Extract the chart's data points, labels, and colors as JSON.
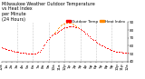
{
  "title": "Milwaukee Weather Outdoor Temperature vs Heat Index per Minute (24 Hours)",
  "bg_color": "#ffffff",
  "dot_color_temp": "#ff0000",
  "dot_color_hi": "#ff8800",
  "legend_label_temp": "Outdoor Temp",
  "legend_label_hi": "Heat Index",
  "legend_color_temp": "#ff0000",
  "legend_color_hi": "#ff8800",
  "ylim": [
    40,
    90
  ],
  "yticks": [
    40,
    50,
    60,
    70,
    80,
    90
  ],
  "xlim": [
    0,
    1440
  ],
  "xtick_positions": [
    0,
    60,
    120,
    180,
    240,
    300,
    360,
    420,
    480,
    540,
    600,
    660,
    720,
    780,
    840,
    900,
    960,
    1020,
    1080,
    1140,
    1200,
    1260,
    1320,
    1380,
    1440
  ],
  "xtick_labels": [
    "12a",
    "1a",
    "2a",
    "3a",
    "4a",
    "5a",
    "6a",
    "7a",
    "8a",
    "9a",
    "10a",
    "11a",
    "12p",
    "1p",
    "2p",
    "3p",
    "4p",
    "5p",
    "6p",
    "7p",
    "8p",
    "9p",
    "10p",
    "11p",
    "12a"
  ],
  "vgrid_positions": [
    180,
    360,
    540,
    720,
    900,
    1080,
    1260
  ],
  "temp_data": [
    [
      0,
      58
    ],
    [
      15,
      57
    ],
    [
      30,
      57
    ],
    [
      45,
      56
    ],
    [
      60,
      56
    ],
    [
      75,
      55
    ],
    [
      90,
      55
    ],
    [
      105,
      55
    ],
    [
      120,
      54
    ],
    [
      135,
      54
    ],
    [
      150,
      53
    ],
    [
      165,
      53
    ],
    [
      180,
      52
    ],
    [
      195,
      52
    ],
    [
      210,
      51
    ],
    [
      225,
      51
    ],
    [
      240,
      51
    ],
    [
      255,
      51
    ],
    [
      270,
      51
    ],
    [
      285,
      50
    ],
    [
      300,
      50
    ],
    [
      315,
      50
    ],
    [
      330,
      50
    ],
    [
      345,
      50
    ],
    [
      360,
      50
    ],
    [
      375,
      50
    ],
    [
      390,
      50
    ],
    [
      405,
      51
    ],
    [
      420,
      52
    ],
    [
      435,
      53
    ],
    [
      450,
      55
    ],
    [
      465,
      57
    ],
    [
      480,
      60
    ],
    [
      495,
      62
    ],
    [
      510,
      65
    ],
    [
      525,
      67
    ],
    [
      540,
      69
    ],
    [
      555,
      71
    ],
    [
      570,
      73
    ],
    [
      585,
      74
    ],
    [
      600,
      75
    ],
    [
      615,
      76
    ],
    [
      630,
      77
    ],
    [
      645,
      78
    ],
    [
      660,
      79
    ],
    [
      675,
      80
    ],
    [
      690,
      81
    ],
    [
      705,
      82
    ],
    [
      720,
      83
    ],
    [
      735,
      84
    ],
    [
      750,
      84
    ],
    [
      765,
      85
    ],
    [
      780,
      85
    ],
    [
      795,
      85
    ],
    [
      810,
      85
    ],
    [
      825,
      85
    ],
    [
      840,
      84
    ],
    [
      855,
      84
    ],
    [
      870,
      83
    ],
    [
      885,
      82
    ],
    [
      900,
      81
    ],
    [
      915,
      80
    ],
    [
      930,
      79
    ],
    [
      945,
      78
    ],
    [
      960,
      76
    ],
    [
      975,
      75
    ],
    [
      990,
      73
    ],
    [
      1005,
      72
    ],
    [
      1020,
      70
    ],
    [
      1035,
      69
    ],
    [
      1050,
      68
    ],
    [
      1065,
      67
    ],
    [
      1080,
      65
    ],
    [
      1095,
      64
    ],
    [
      1110,
      63
    ],
    [
      1125,
      62
    ],
    [
      1140,
      61
    ],
    [
      1155,
      60
    ],
    [
      1170,
      59
    ],
    [
      1185,
      58
    ],
    [
      1200,
      57
    ],
    [
      1215,
      57
    ],
    [
      1230,
      56
    ],
    [
      1245,
      55
    ],
    [
      1260,
      55
    ],
    [
      1275,
      54
    ],
    [
      1290,
      54
    ],
    [
      1305,
      53
    ],
    [
      1320,
      53
    ],
    [
      1335,
      52
    ],
    [
      1350,
      52
    ],
    [
      1365,
      52
    ],
    [
      1380,
      51
    ],
    [
      1395,
      51
    ],
    [
      1410,
      51
    ],
    [
      1425,
      51
    ],
    [
      1440,
      51
    ]
  ],
  "hi_data": [
    [
      600,
      77
    ],
    [
      615,
      78
    ],
    [
      630,
      80
    ],
    [
      645,
      82
    ],
    [
      660,
      84
    ],
    [
      675,
      86
    ],
    [
      690,
      87
    ],
    [
      705,
      88
    ],
    [
      720,
      88
    ],
    [
      735,
      89
    ],
    [
      750,
      89
    ],
    [
      765,
      89
    ],
    [
      780,
      89
    ],
    [
      795,
      89
    ],
    [
      810,
      88
    ],
    [
      825,
      87
    ],
    [
      840,
      86
    ],
    [
      855,
      85
    ],
    [
      870,
      83
    ]
  ],
  "title_fontsize": 3.5,
  "tick_fontsize": 3.0,
  "legend_fontsize": 3.0,
  "dot_size": 0.5
}
